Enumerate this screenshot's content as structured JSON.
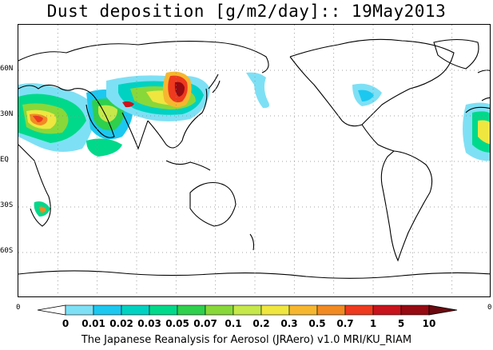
{
  "title": "Dust deposition [g/m2/day]:: 19May2013",
  "footer": "The Japanese Reanalysis for Aerosol (JRAero) v1.0 MRI/KU_RIAM",
  "axis": {
    "lat_labels": [
      "60N",
      "30N",
      "EQ",
      "30S",
      "60S"
    ],
    "lat_values": [
      60,
      30,
      0,
      -30,
      -60
    ],
    "left_corner": "0",
    "right_corner": "0"
  },
  "colorbar": {
    "labels": [
      "0",
      "0.01",
      "0.02",
      "0.03",
      "0.05",
      "0.07",
      "0.1",
      "0.2",
      "0.3",
      "0.5",
      "0.7",
      "1",
      "5",
      "10"
    ],
    "colors": [
      "#ffffff",
      "#7ee0f5",
      "#1cc8f0",
      "#00d2c2",
      "#00d98a",
      "#2ed04c",
      "#88d83a",
      "#c6e84a",
      "#efe640",
      "#f6b72f",
      "#f28a22",
      "#ee3a1e",
      "#c8141c",
      "#960a12"
    ],
    "arrow_color": "#6b0a10"
  },
  "colors": {
    "coast": "#000000",
    "grid": "#888888"
  }
}
